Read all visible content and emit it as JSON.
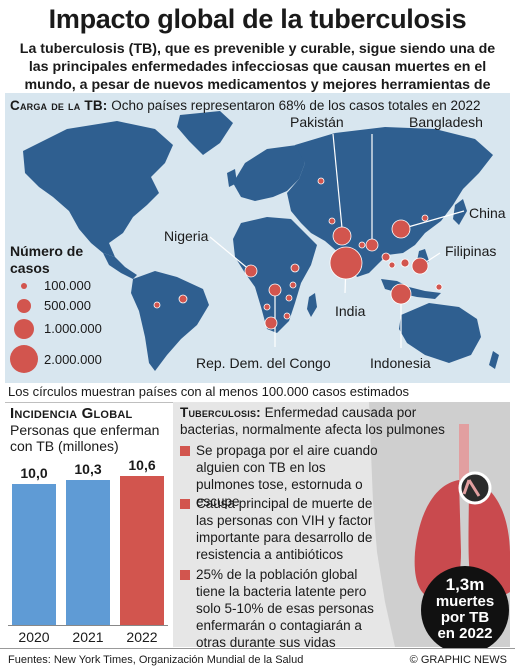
{
  "header": {
    "title": "Impacto global de la tuberculosis",
    "subtitle": "La tuberculosis (TB), que es prevenible y curable, sigue siendo una de las principales enfermedades infecciosas que causan muertes en el mundo, a pesar de nuevos medicamentos y mejores herramientas de diagnóstico"
  },
  "map": {
    "header_label": "Carga de la TB:",
    "header_text": "Ocho países representaron 68% de los casos totales en  2022",
    "legend": {
      "title": "Número de casos",
      "items": [
        "100.000",
        "500.000",
        "1.000.000",
        "2.000.000"
      ]
    },
    "countries": {
      "pakistan": "Pakistán",
      "bangladesh": "Bangladesh",
      "china": "China",
      "nigeria": "Nigeria",
      "filipinas": "Filipinas",
      "india": "India",
      "indonesia": "Indonesia",
      "rdc": "Rep. Dem. del Congo"
    },
    "note": "Los círculos muestran países con al menos 100.000 casos estimados",
    "colors": {
      "ocean": "#d8e6ef",
      "land": "#2f5f90",
      "circle": "#d2554e"
    }
  },
  "incidence": {
    "title": "Incidencia Global",
    "subtitle": "Personas que enferman con TB (millones)",
    "bars": [
      {
        "year": "2020",
        "value": 10.0,
        "label": "10,0"
      },
      {
        "year": "2021",
        "value": 10.3,
        "label": "10,3"
      },
      {
        "year": "2022",
        "value": 10.6,
        "label": "10,6"
      }
    ],
    "colors": {
      "past": "#5f9bd5",
      "current": "#d2554e"
    }
  },
  "tb_info": {
    "label": "Tuberculosis:",
    "definition": "Enfermedad causada por bacterias, normalmente afecta los pulmones",
    "bullets": [
      "Se propaga por el aire cuando alguien con TB en los pulmones tose, estornuda o escupe",
      "Causa principal de muerte de las personas con VIH y factor importante para desarrollo de resistencia a antibióticos",
      "25% de la población global tiene la bacteria latente pero solo 5-10% de esas personas enfermarán o contagiarán a otras durante sus vidas"
    ],
    "deaths": {
      "line1": "1,3m",
      "line2": "muertes",
      "line3": "por TB",
      "line4": "en 2022"
    }
  },
  "footer": {
    "sources": "Fuentes: New York Times, Organización Mundial de la Salud",
    "credit": "© GRAPHIC NEWS"
  }
}
